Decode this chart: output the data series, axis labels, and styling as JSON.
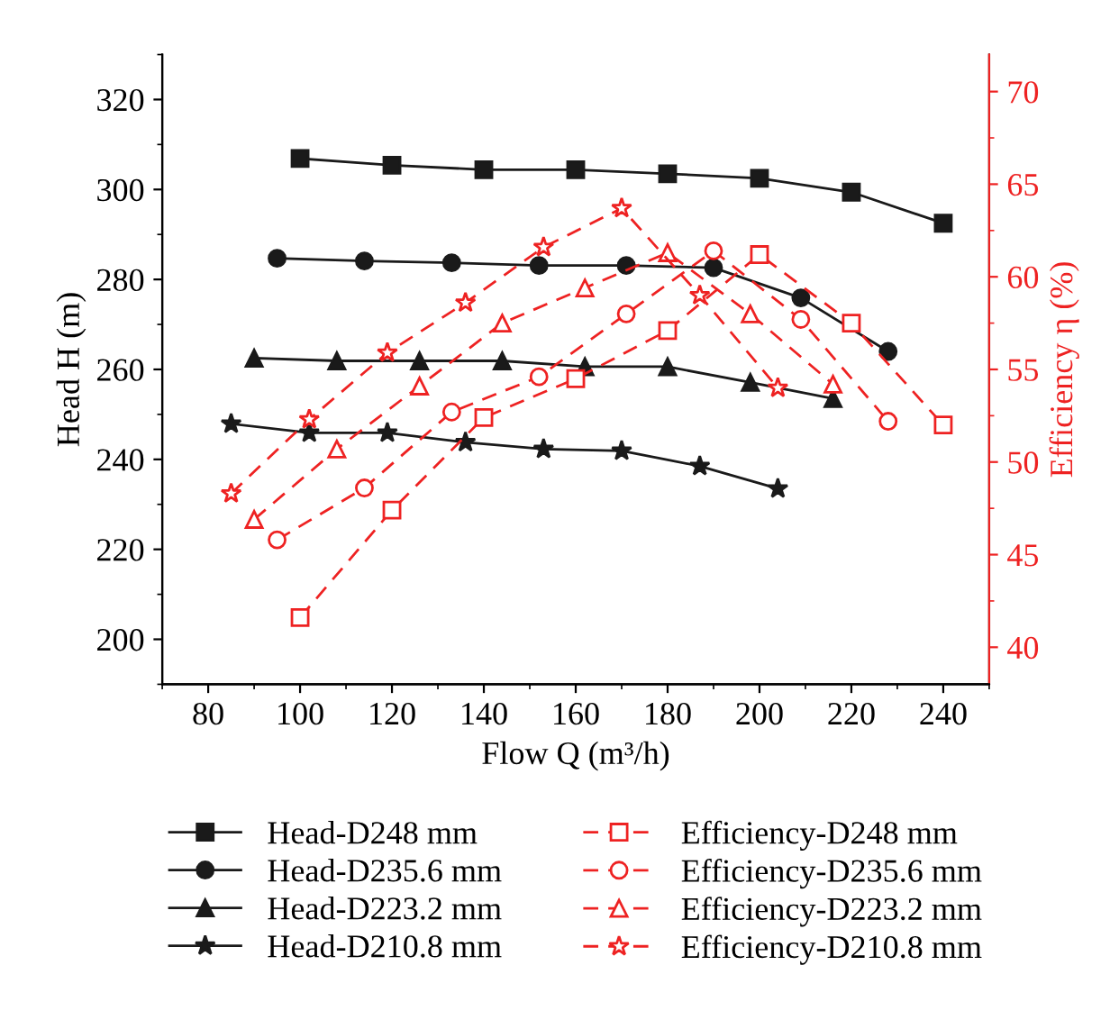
{
  "chart_data": {
    "type": "line",
    "xlabel": "Flow Q (m³/h)",
    "ylabel": "Head H (m)",
    "y2label": "Efficiency η (%)",
    "xlim": [
      70,
      250
    ],
    "xticks": [
      80,
      100,
      120,
      140,
      160,
      180,
      200,
      220,
      240
    ],
    "ylim": [
      190,
      330
    ],
    "yticks": [
      200,
      220,
      240,
      260,
      280,
      300,
      320
    ],
    "y2lim": [
      38,
      72
    ],
    "y2ticks": [
      40,
      45,
      50,
      55,
      60,
      65,
      70
    ],
    "grid": false,
    "legend": "bottom",
    "series": [
      {
        "name": "Head-D248 mm",
        "color": "#1a1a1a",
        "marker": "square",
        "line_style": "solid",
        "x": [
          100,
          120,
          140,
          160,
          180,
          200,
          220,
          240
        ],
        "values": [
          306.9,
          305.4,
          304.4,
          304.4,
          303.5,
          302.5,
          299.4,
          292.5
        ]
      },
      {
        "name": "Head-D235.6 mm",
        "color": "#1a1a1a",
        "marker": "circle",
        "line_style": "solid",
        "x": [
          95,
          114,
          133,
          152,
          171,
          190,
          209,
          228
        ],
        "values": [
          284.7,
          284.1,
          283.7,
          283.1,
          283.1,
          282.6,
          275.9,
          264.0
        ]
      },
      {
        "name": "Head-D223.2 mm",
        "color": "#1a1a1a",
        "marker": "triangle",
        "line_style": "solid",
        "x": [
          90,
          108,
          126,
          144,
          162,
          180,
          198,
          216
        ],
        "values": [
          262.5,
          261.9,
          261.9,
          261.9,
          260.6,
          260.6,
          257.1,
          253.5
        ]
      },
      {
        "name": "Head-D210.8 mm",
        "color": "#1a1a1a",
        "marker": "star",
        "line_style": "solid",
        "x": [
          85,
          102,
          119,
          136,
          153,
          170,
          187,
          204
        ],
        "values": [
          247.9,
          245.9,
          245.9,
          243.8,
          242.3,
          241.9,
          238.5,
          233.5
        ]
      },
      {
        "name": "Efficiency-D248 mm",
        "color": "#ee2222",
        "marker": "square",
        "line_style": "dashed",
        "axis": "y2",
        "x": [
          100,
          120,
          140,
          160,
          180,
          200,
          220,
          240
        ],
        "values": [
          41.6,
          47.4,
          52.4,
          54.5,
          57.1,
          61.2,
          57.5,
          52.0
        ]
      },
      {
        "name": "Efficiency-D235.6 mm",
        "color": "#ee2222",
        "marker": "circle",
        "line_style": "dashed",
        "axis": "y2",
        "x": [
          95,
          114,
          133,
          152,
          171,
          190,
          209,
          228
        ],
        "values": [
          45.8,
          48.6,
          52.7,
          54.6,
          58.0,
          61.4,
          57.7,
          52.2
        ]
      },
      {
        "name": "Efficiency-D223.2 mm",
        "color": "#ee2222",
        "marker": "triangle",
        "line_style": "dashed",
        "axis": "y2",
        "x": [
          90,
          108,
          126,
          144,
          162,
          180,
          198,
          216
        ],
        "values": [
          46.9,
          50.7,
          54.1,
          57.5,
          59.4,
          61.3,
          58.0,
          54.2
        ]
      },
      {
        "name": "Efficiency-D210.8 mm",
        "color": "#ee2222",
        "marker": "star",
        "line_style": "dashed",
        "axis": "y2",
        "x": [
          85,
          102,
          119,
          136,
          153,
          170,
          187,
          204
        ],
        "values": [
          48.3,
          52.3,
          55.9,
          58.6,
          61.6,
          63.7,
          59.0,
          54.0
        ]
      }
    ]
  }
}
